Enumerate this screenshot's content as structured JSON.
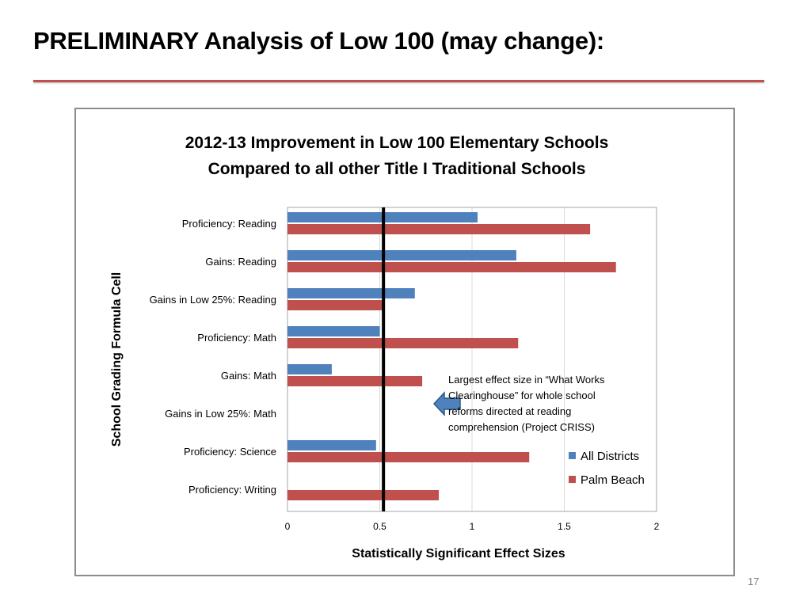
{
  "slide": {
    "title": "PRELIMINARY Analysis of Low 100 (may change):",
    "page_number": "17"
  },
  "colors": {
    "accent_rule": "#c0504d",
    "all_districts": "#4f81bd",
    "palm_beach": "#c0504d",
    "arrow_fill": "#4f81bd",
    "threshold_line": "#000000"
  },
  "chart_data": {
    "type": "bar",
    "orientation": "horizontal",
    "title_lines": [
      "2012-13 Improvement in Low 100 Elementary Schools",
      "Compared to all other Title I Traditional Schools"
    ],
    "xlabel": "Statistically Significant Effect Sizes",
    "ylabel": "School Grading Formula Cell",
    "xlim": [
      0,
      2
    ],
    "xticks": [
      "0",
      "0.5",
      "1",
      "1.5",
      "2"
    ],
    "xtick_values": [
      0,
      0.5,
      1,
      1.5,
      2
    ],
    "categories": [
      "Proficiency: Reading",
      "Gains: Reading",
      "Gains in Low 25%: Reading",
      "Proficiency: Math",
      "Gains: Math",
      "Gains in Low 25%: Math",
      "Proficiency: Science",
      "Proficiency: Writing"
    ],
    "series": [
      {
        "name": "All Districts",
        "values": [
          1.03,
          1.24,
          0.69,
          0.5,
          0.24,
          null,
          0.48,
          null
        ]
      },
      {
        "name": "Palm Beach",
        "values": [
          1.64,
          1.78,
          0.52,
          1.25,
          0.73,
          null,
          1.31,
          0.82
        ]
      }
    ],
    "reference_line": {
      "x": 0.52
    },
    "legend_position": "bottom-right",
    "annotation": {
      "lines": [
        "Largest effect size in “What Works",
        "Clearinghouse” for whole school",
        "reforms directed at reading",
        "comprehension (Project CRISS)"
      ]
    },
    "gridlines": "vertical"
  }
}
